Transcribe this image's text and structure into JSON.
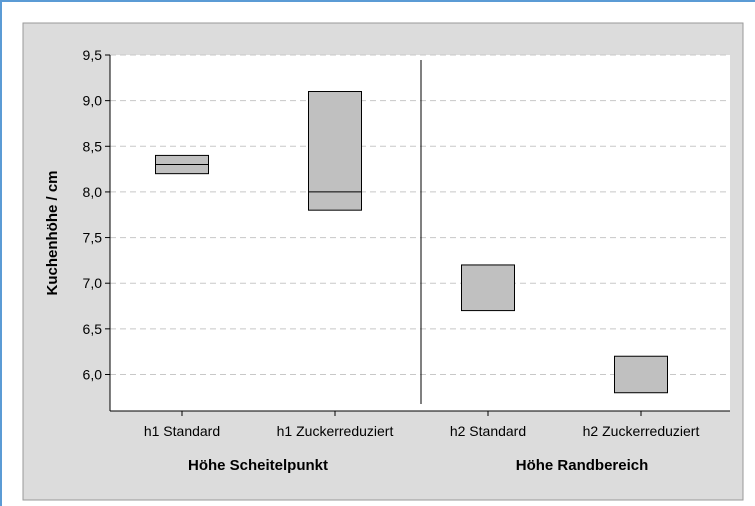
{
  "chart_data": {
    "type": "box",
    "ylabel": "Kuchenhöhe / cm",
    "ylim": [
      5.6,
      9.5
    ],
    "yticks": [
      "9,5",
      "9,0",
      "8,5",
      "8,0",
      "7,5",
      "7,0",
      "6,5",
      "6,0"
    ],
    "ytick_values": [
      9.5,
      9.0,
      8.5,
      8.0,
      7.5,
      7.0,
      6.5,
      6.0
    ],
    "grid": "horizontal dashed",
    "categories": [
      "h1 Standard",
      "h1 Zuckerreduziert",
      "h2 Standard",
      "h2 Zuckerreduziert"
    ],
    "groups": [
      {
        "label": "Höhe Scheitelpunkt",
        "categories": [
          "h1 Standard",
          "h1 Zuckerreduziert"
        ]
      },
      {
        "label": "Höhe Randbereich",
        "categories": [
          "h2 Standard",
          "h2 Zuckerreduziert"
        ]
      }
    ],
    "boxes": [
      {
        "category": "h1 Standard",
        "q1": 8.2,
        "median": 8.3,
        "q3": 8.4
      },
      {
        "category": "h1 Zuckerreduziert",
        "q1": 7.8,
        "median": 8.0,
        "q3": 9.1
      },
      {
        "category": "h2 Standard",
        "q1": 6.7,
        "median": null,
        "q3": 7.2
      },
      {
        "category": "h2 Zuckerreduziert",
        "q1": 5.8,
        "median": null,
        "q3": 6.2
      }
    ],
    "colors": {
      "outer_background": "#dcdcdc",
      "plot_background": "#ffffff",
      "box_fill": "#c0c0c0",
      "gridline": "#c8c8c8"
    }
  }
}
